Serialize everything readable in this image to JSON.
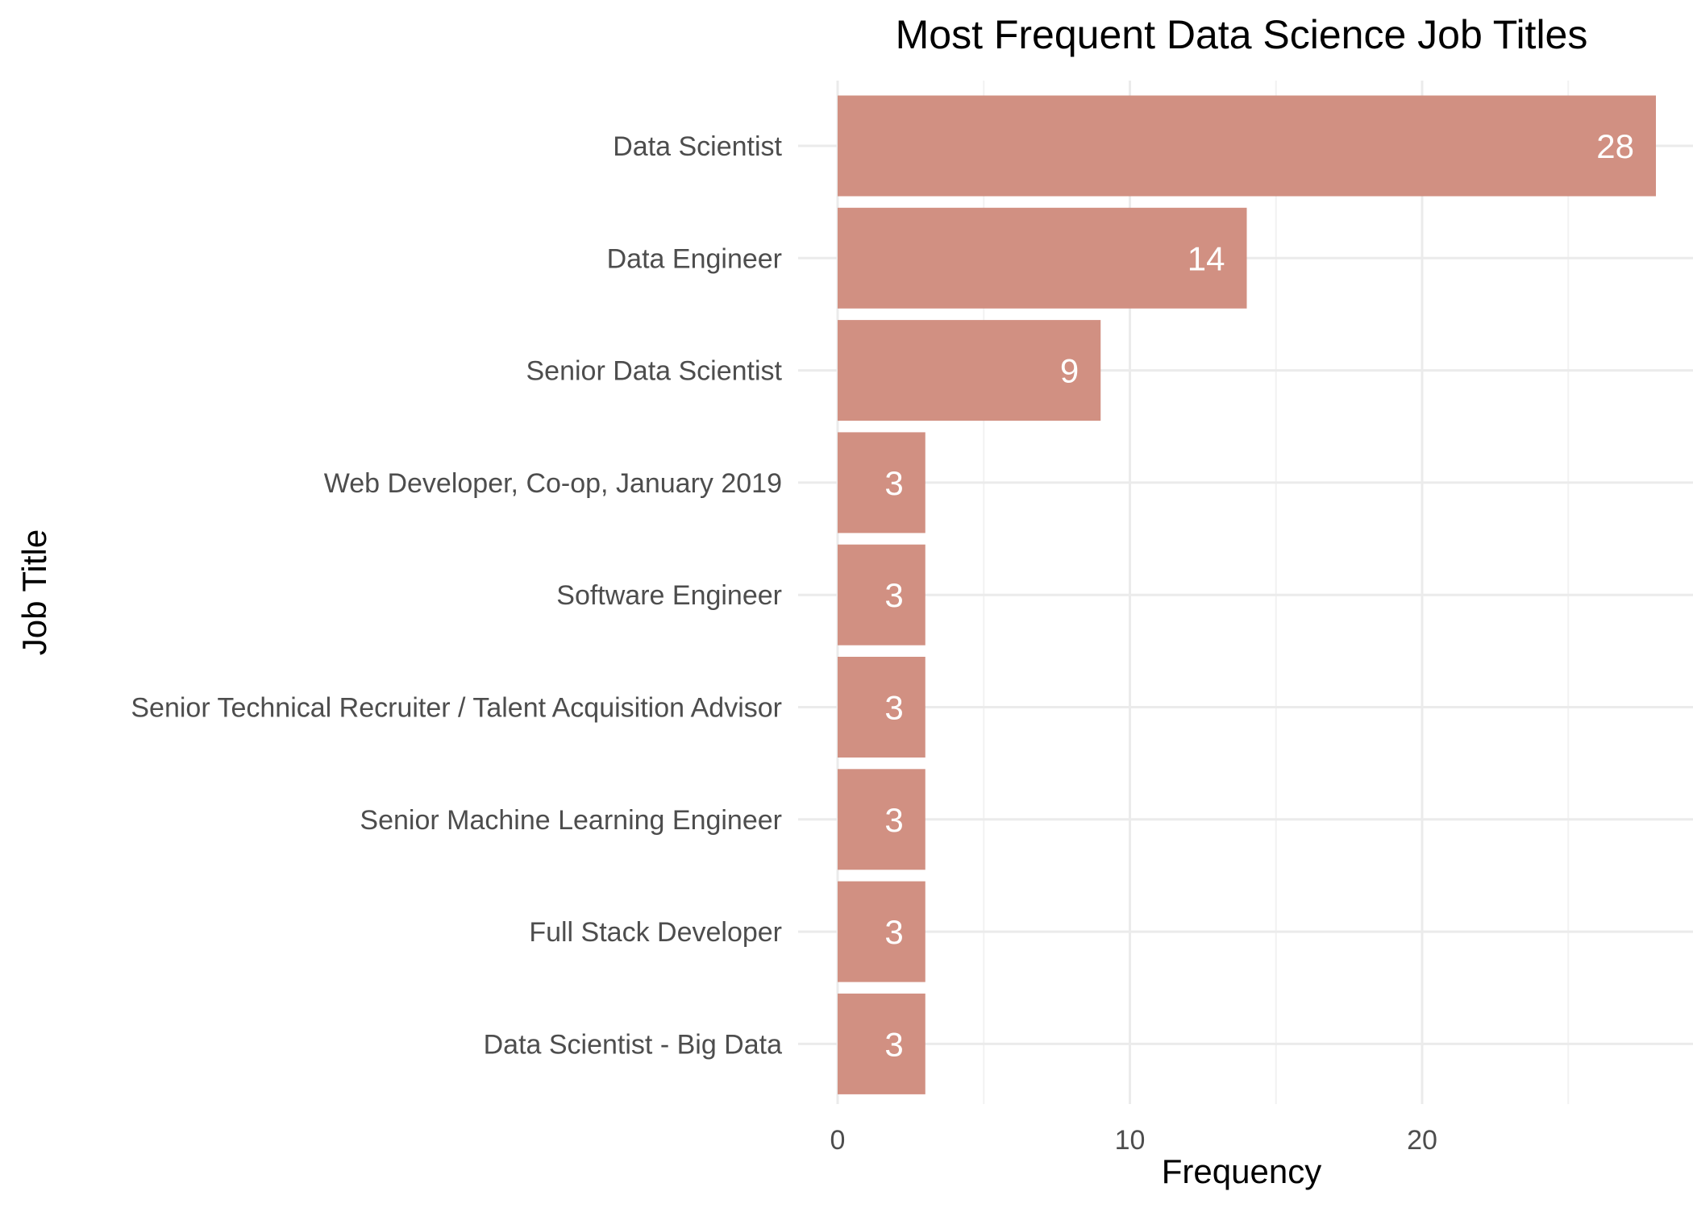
{
  "chart_data": {
    "type": "bar",
    "orientation": "horizontal",
    "title": "Most Frequent Data Science Job Titles",
    "xlabel": "Frequency",
    "ylabel": "Job Title",
    "categories": [
      "Data Scientist",
      "Data Engineer",
      "Senior Data Scientist",
      "Web Developer, Co-op, January 2019",
      "Software Engineer",
      "Senior Technical Recruiter / Talent Acquisition Advisor",
      "Senior Machine Learning Engineer",
      "Full Stack Developer",
      "Data Scientist - Big Data"
    ],
    "values": [
      28,
      14,
      9,
      3,
      3,
      3,
      3,
      3,
      3
    ],
    "xlim": [
      0,
      29.4
    ],
    "xticks": [
      0,
      10,
      20
    ],
    "bar_color": "#d19082",
    "grid": true,
    "legend": "none"
  }
}
